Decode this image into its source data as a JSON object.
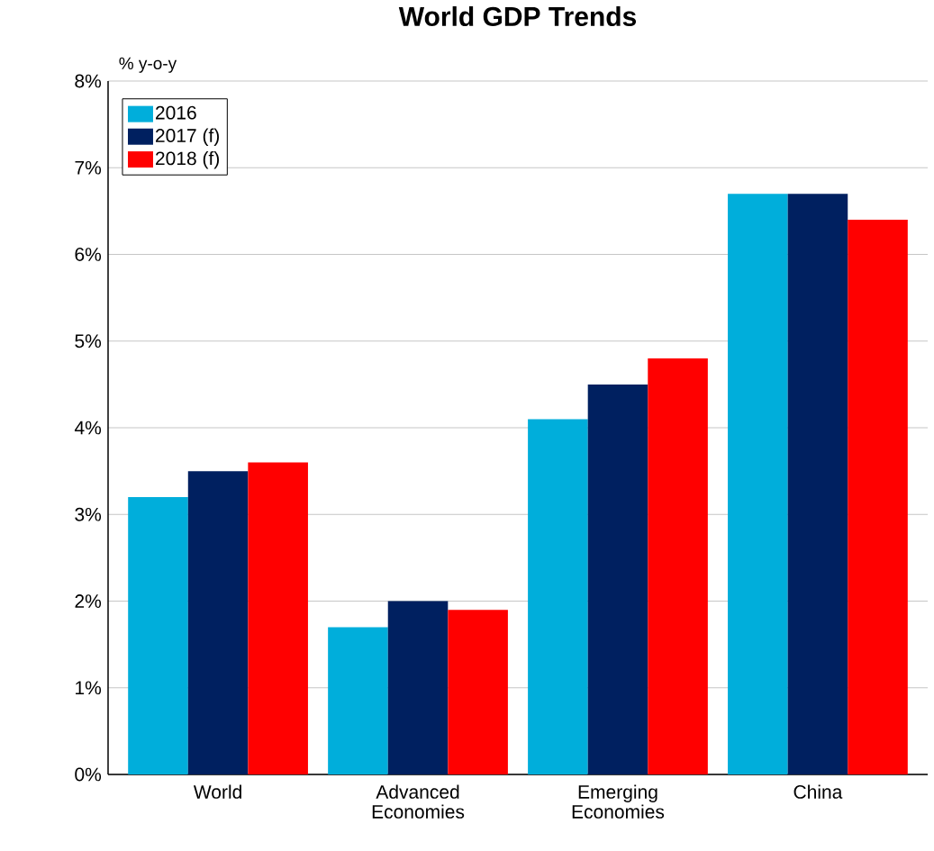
{
  "chart_data": {
    "type": "bar",
    "title": "World GDP Trends",
    "ylabel": "% y-o-y",
    "categories": [
      "World",
      "Advanced Economies",
      "Emerging Economies",
      "China"
    ],
    "series": [
      {
        "name": "2016",
        "color": "#00aedb",
        "values": [
          3.2,
          1.7,
          4.1,
          6.7
        ]
      },
      {
        "name": "2017 (f)",
        "color": "#002060",
        "values": [
          3.5,
          2.0,
          4.5,
          6.7
        ]
      },
      {
        "name": "2018 (f)",
        "color": "#ff0000",
        "values": [
          3.6,
          1.9,
          4.8,
          6.4
        ]
      }
    ],
    "ylim": [
      0,
      8
    ],
    "yticks": [
      {
        "value": 0,
        "label": "0%"
      },
      {
        "value": 1,
        "label": "1%"
      },
      {
        "value": 2,
        "label": "2%"
      },
      {
        "value": 3,
        "label": "3%"
      },
      {
        "value": 4,
        "label": "4%"
      },
      {
        "value": 5,
        "label": "5%"
      },
      {
        "value": 6,
        "label": "6%"
      },
      {
        "value": 7,
        "label": "7%"
      },
      {
        "value": 8,
        "label": "8%"
      }
    ],
    "grid": "y",
    "legend": "top left"
  }
}
